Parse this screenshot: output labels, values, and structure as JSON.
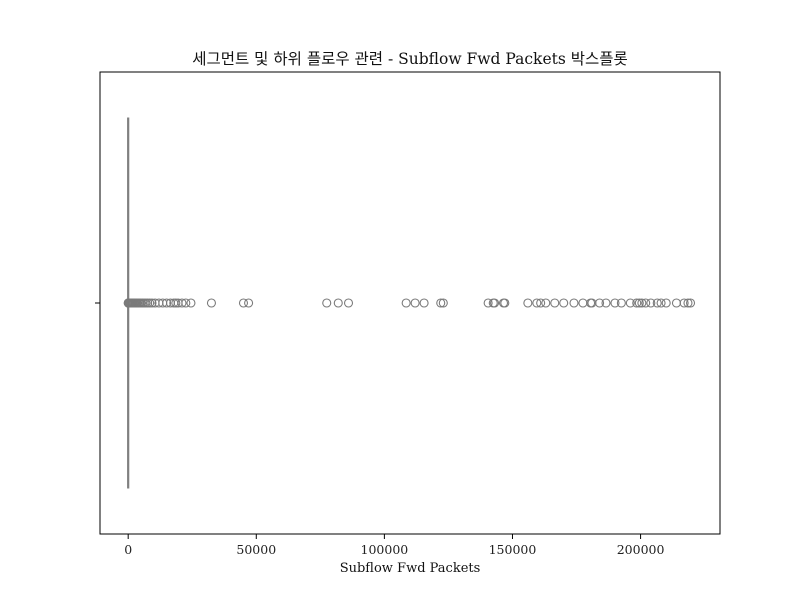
{
  "chart_data": {
    "type": "box",
    "orientation": "horizontal",
    "title": "세그먼트 및 하위 플로우 관련 - Subflow Fwd Packets 박스플롯",
    "xlabel": "Subflow Fwd Packets",
    "ylabel": "",
    "xlim": [
      -11000,
      231000
    ],
    "x_ticks": [
      0,
      50000,
      100000,
      150000,
      200000
    ],
    "x_tick_labels": [
      "0",
      "50000",
      "100000",
      "150000",
      "200000"
    ],
    "grid": false,
    "colors": {
      "box": "#808080",
      "outlier_edge": "#7a7a7a"
    },
    "box": {
      "whisker_low": 0,
      "q1": 1,
      "median": 2,
      "q3": 6,
      "whisker_high": 12
    },
    "outliers": [
      0,
      80,
      160,
      260,
      380,
      500,
      650,
      800,
      1000,
      1200,
      1450,
      1700,
      2000,
      2350,
      2700,
      3100,
      3500,
      4000,
      4500,
      5000,
      5600,
      6200,
      6900,
      7600,
      8400,
      9300,
      10500,
      12000,
      13500,
      15000,
      16500,
      17800,
      18600,
      19500,
      21000,
      22500,
      24500,
      32500,
      45000,
      47000,
      77500,
      82000,
      86000,
      108500,
      112000,
      115500,
      122000,
      123000,
      140500,
      142500,
      143000,
      146500,
      147000,
      156000,
      159500,
      161000,
      163000,
      166500,
      170000,
      174000,
      177500,
      180500,
      181000,
      184000,
      186500,
      190000,
      192500,
      196000,
      198500,
      199500,
      200500,
      202000,
      204000,
      206500,
      208000,
      210000,
      214000,
      217000,
      218500,
      219500
    ]
  }
}
